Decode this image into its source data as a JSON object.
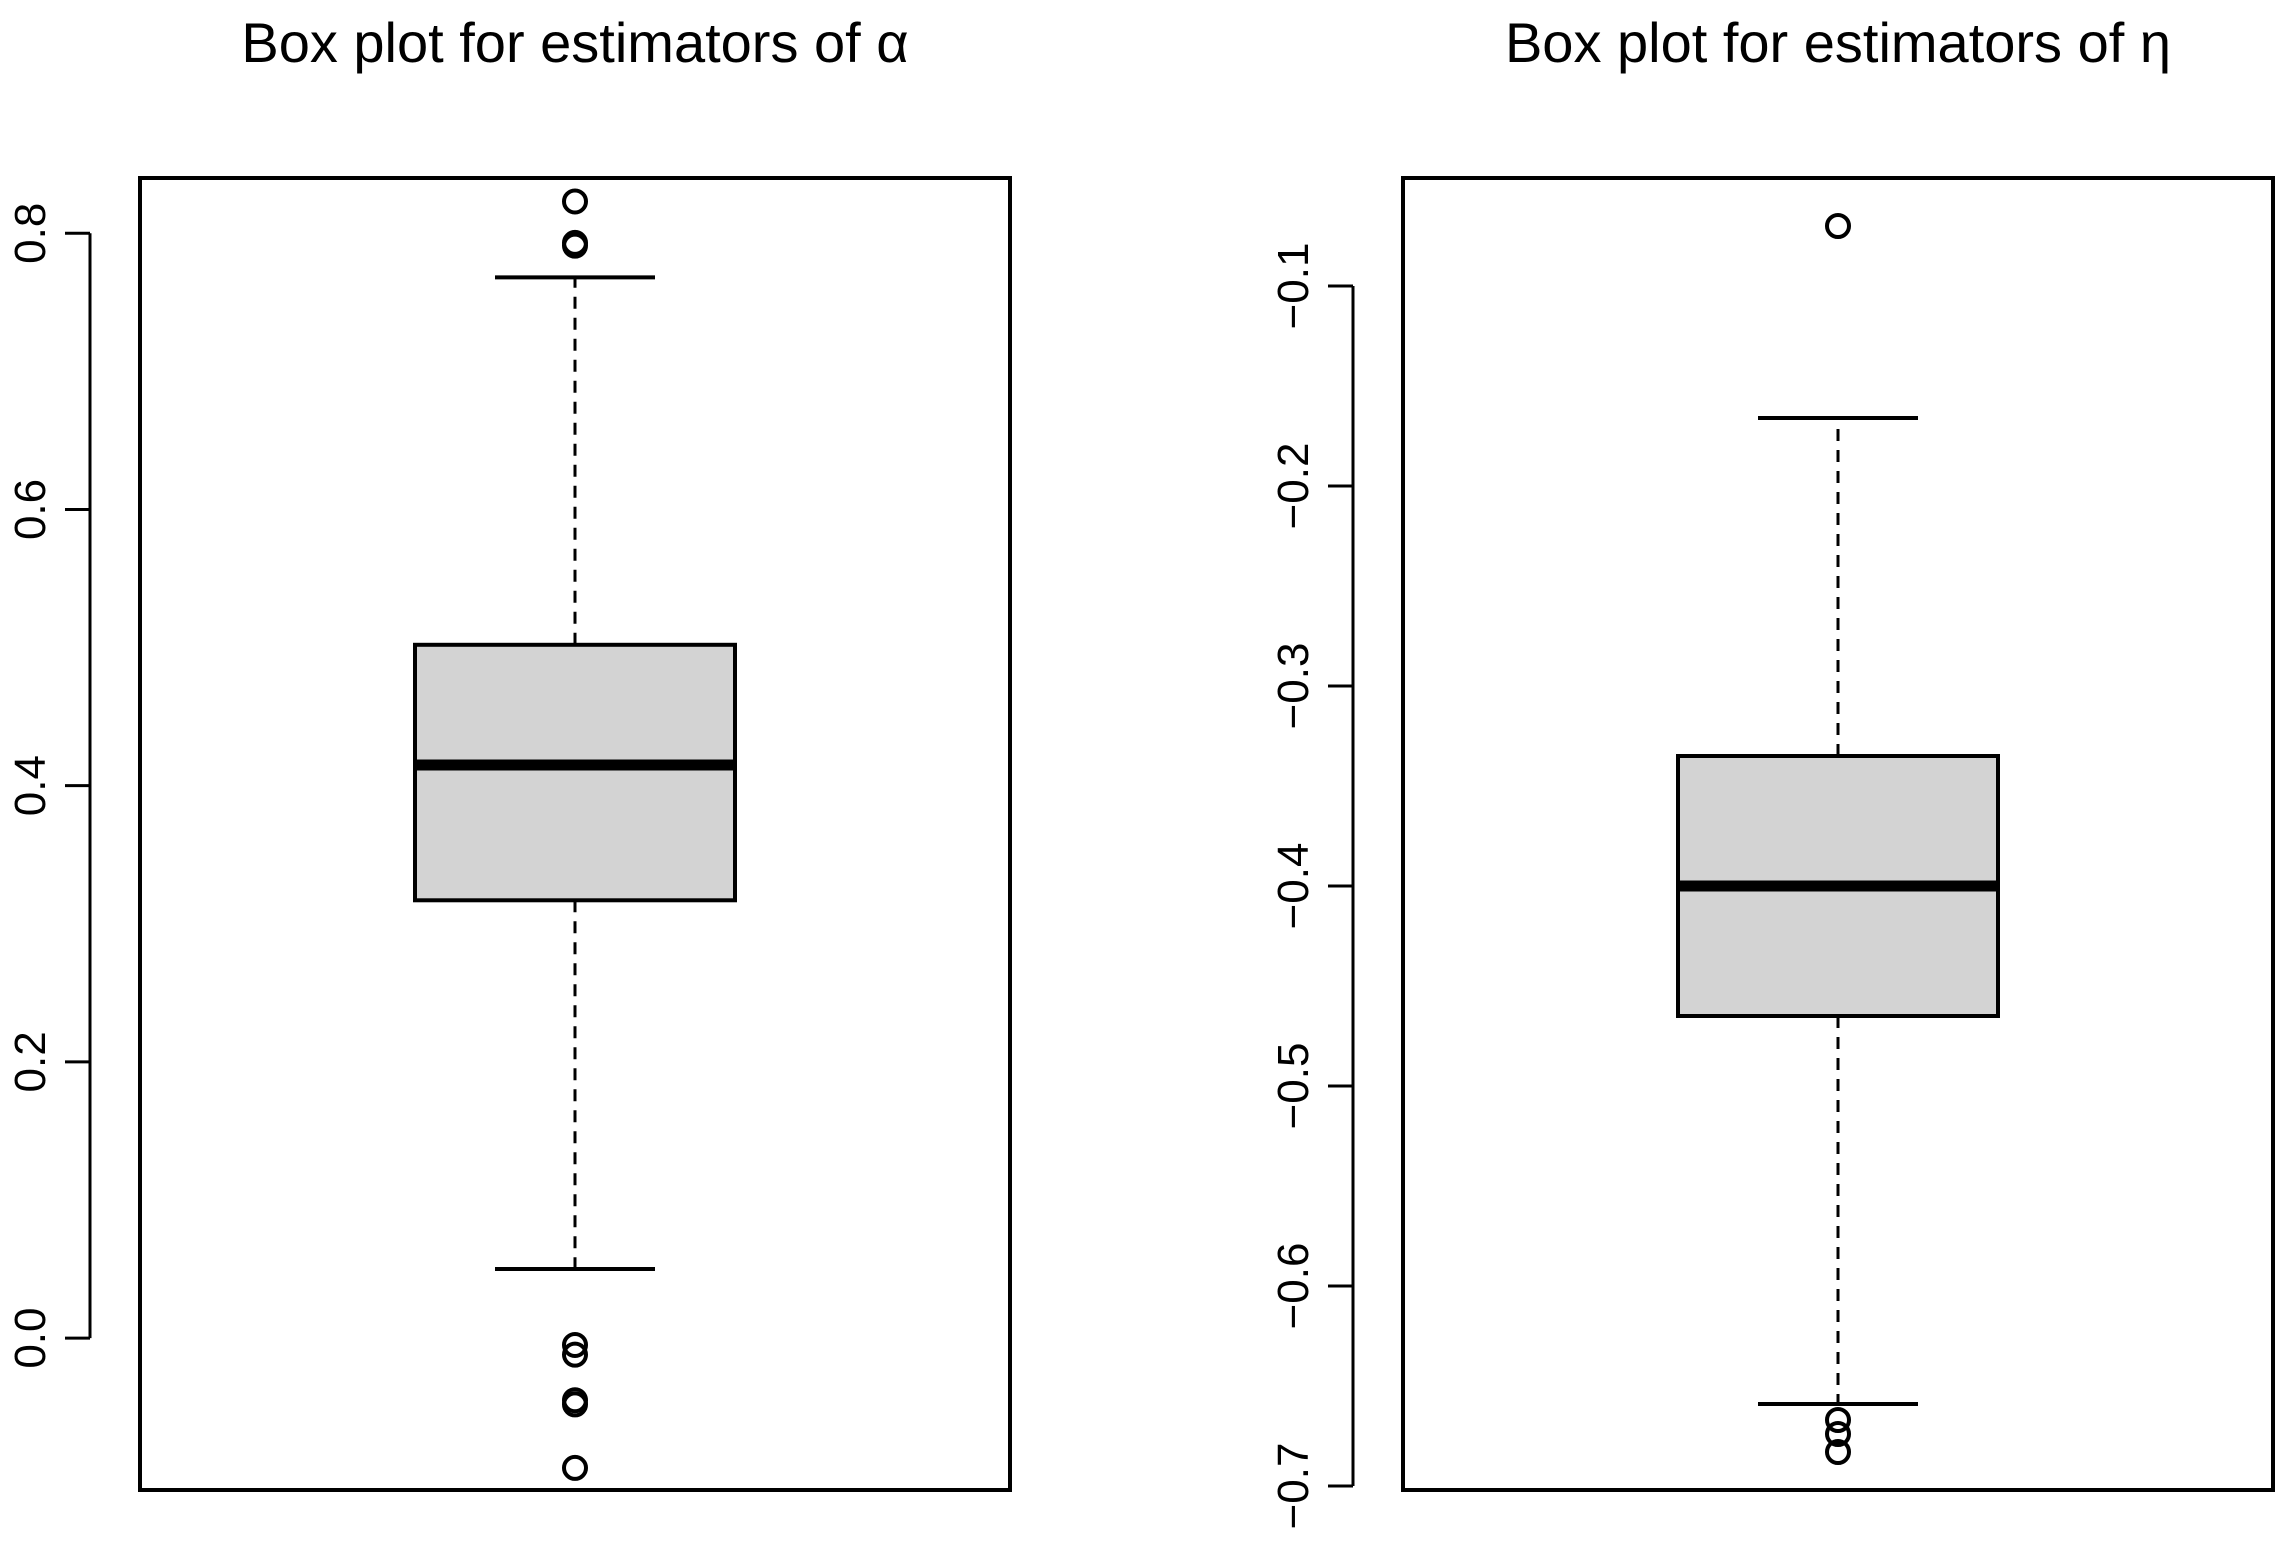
{
  "colors": {
    "box_fill": "#d3d3d3",
    "stroke": "#000000",
    "background": "#ffffff"
  },
  "chart_data": [
    {
      "type": "box",
      "title": "Box plot for estimators of α",
      "xlabel": "",
      "ylabel": "",
      "ylim": [
        -0.11,
        0.84
      ],
      "yticks": [
        0.0,
        0.2,
        0.4,
        0.6,
        0.8
      ],
      "ytick_labels": [
        "0.0",
        "0.2",
        "0.4",
        "0.6",
        "0.8"
      ],
      "stats": {
        "whisker_low": 0.05,
        "q1": 0.317,
        "median": 0.415,
        "q3": 0.502,
        "whisker_high": 0.768
      },
      "outliers": [
        0.823,
        0.793,
        0.791,
        -0.005,
        -0.012,
        -0.045,
        -0.048,
        -0.094
      ]
    },
    {
      "type": "box",
      "title": "Box plot for estimators of η",
      "xlabel": "",
      "ylabel": "",
      "ylim": [
        -0.702,
        -0.046
      ],
      "yticks": [
        -0.1,
        -0.2,
        -0.3,
        -0.4,
        -0.5,
        -0.6,
        -0.7
      ],
      "ytick_labels": [
        "−0.1",
        "−0.2",
        "−0.3",
        "−0.4",
        "−0.5",
        "−0.6",
        "−0.7"
      ],
      "stats": {
        "whisker_low": -0.659,
        "q1": -0.465,
        "median": -0.4,
        "q3": -0.335,
        "whisker_high": -0.166
      },
      "outliers": [
        -0.07,
        -0.667,
        -0.674,
        -0.683
      ]
    }
  ]
}
